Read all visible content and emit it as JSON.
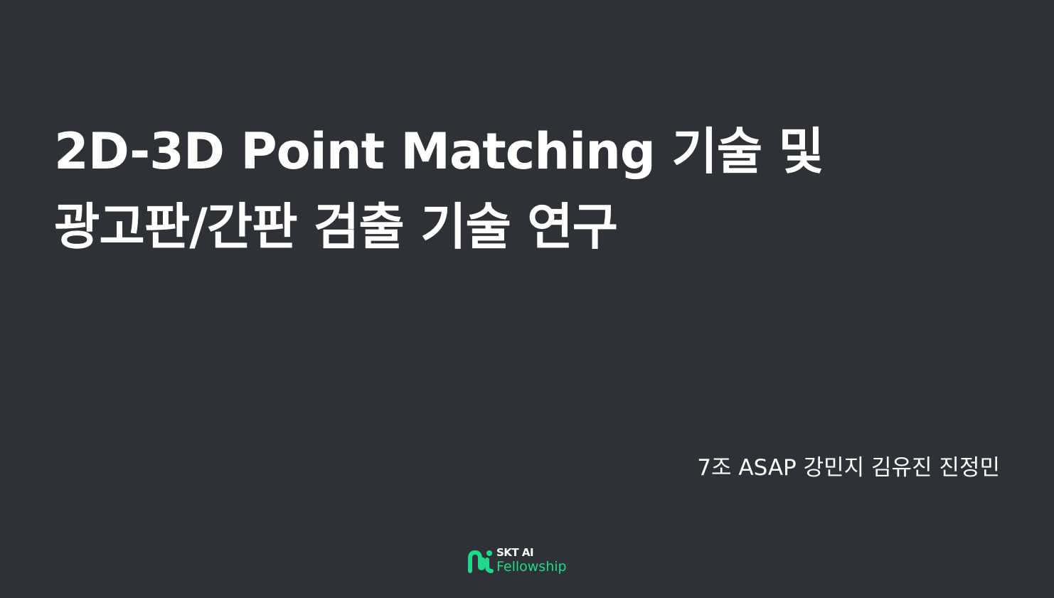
{
  "slide": {
    "title_line1": "2D-3D Point Matching 기술 및",
    "title_line2": "광고판/간판 검출 기술 연구",
    "authors": "7조 ASAP 강민지 김유진 진정민"
  },
  "logo": {
    "brand": "SKT AI",
    "program": "Fellowship",
    "icon": "skt-ai-fellowship-mark-icon",
    "accent_color": "#1ed98a"
  },
  "colors": {
    "background": "#2e3236",
    "text": "#ffffff"
  }
}
